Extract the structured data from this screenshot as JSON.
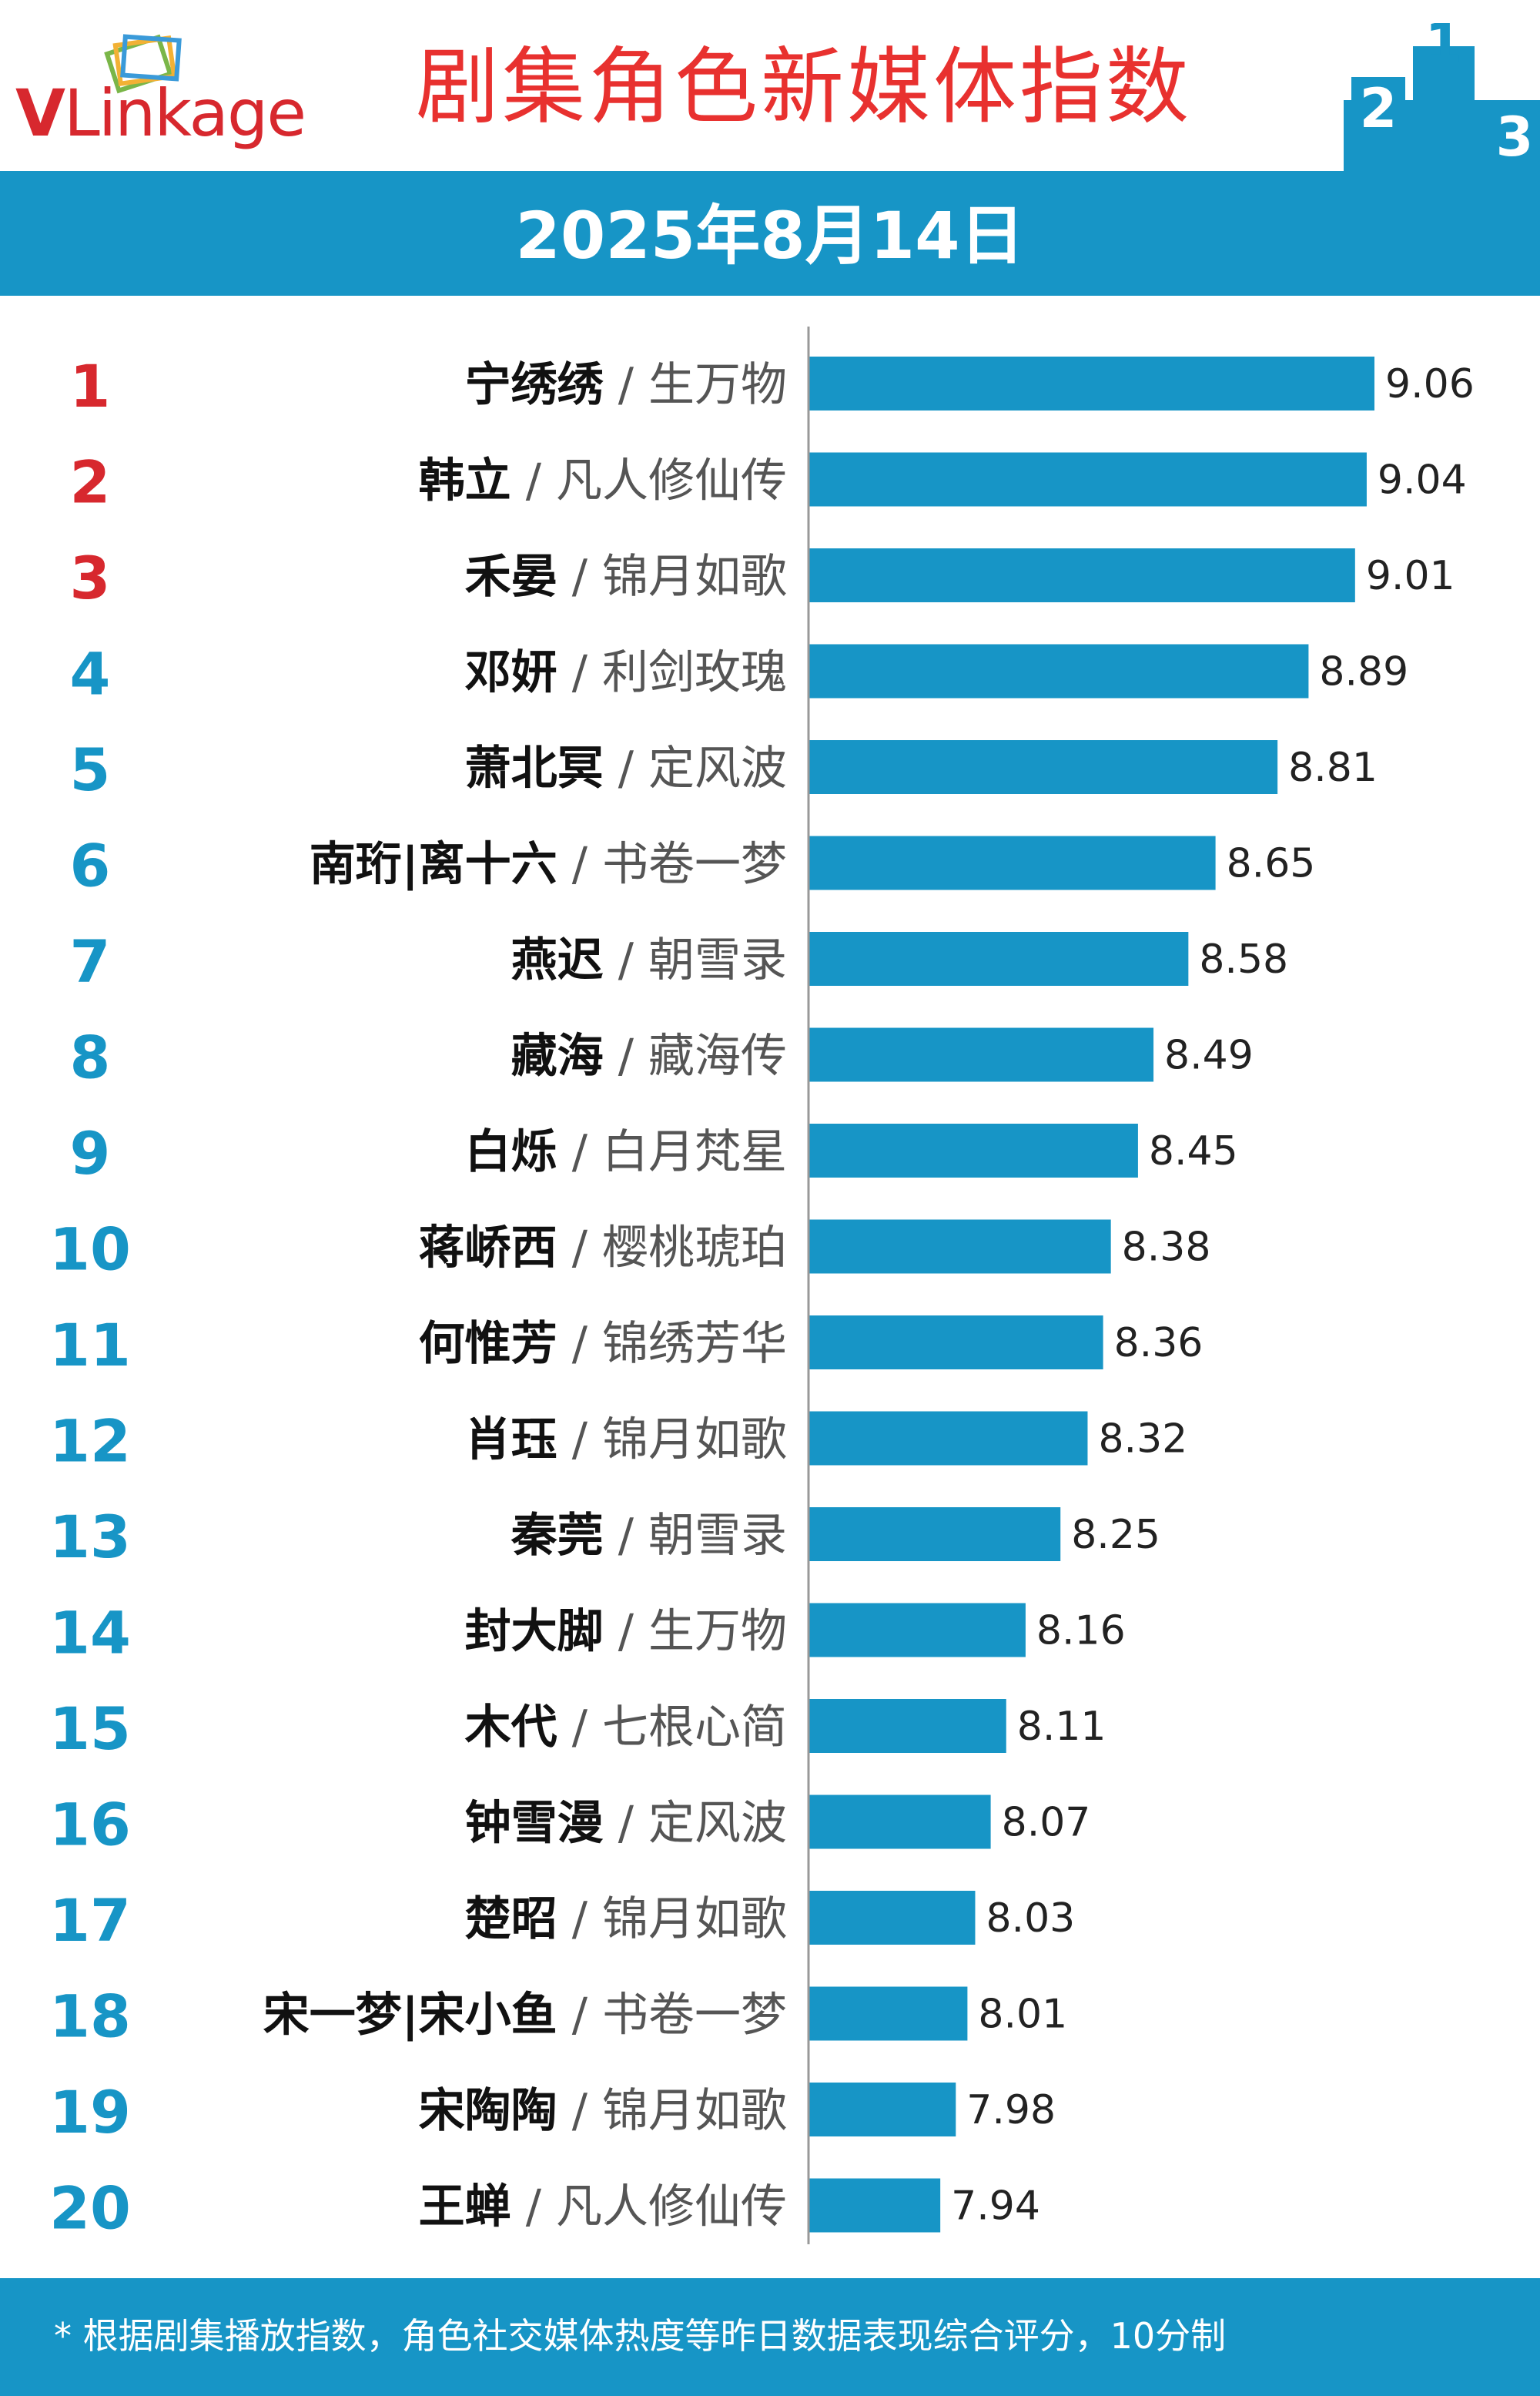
{
  "header": {
    "logo_text_v": "V",
    "logo_text_rest": "Linkage",
    "title": "剧集角色新媒体指数",
    "podium": [
      "2",
      "1",
      "3"
    ]
  },
  "date": "2025年8月14日",
  "colors": {
    "bar": "#1795c6",
    "rank_top3": "#d7282e",
    "rank_other": "#1795c6",
    "title_red": "#e8312f"
  },
  "chart_data": {
    "type": "bar",
    "orientation": "horizontal",
    "title": "剧集角色新媒体指数",
    "ylim": [
      7.6,
      9.2
    ],
    "rows": [
      {
        "rank": "1",
        "name": "宁绣绣",
        "drama": "生万物",
        "value": 9.06
      },
      {
        "rank": "2",
        "name": "韩立",
        "drama": "凡人修仙传",
        "value": 9.04
      },
      {
        "rank": "3",
        "name": "禾晏",
        "drama": "锦月如歌",
        "value": 9.01
      },
      {
        "rank": "4",
        "name": "邓妍",
        "drama": "利剑玫瑰",
        "value": 8.89
      },
      {
        "rank": "5",
        "name": "萧北冥",
        "drama": "定风波",
        "value": 8.81
      },
      {
        "rank": "6",
        "name": "南珩|离十六",
        "drama": "书卷一梦",
        "value": 8.65
      },
      {
        "rank": "7",
        "name": "燕迟",
        "drama": "朝雪录",
        "value": 8.58
      },
      {
        "rank": "8",
        "name": "藏海",
        "drama": "藏海传",
        "value": 8.49
      },
      {
        "rank": "9",
        "name": "白烁",
        "drama": "白月梵星",
        "value": 8.45
      },
      {
        "rank": "10",
        "name": "蒋峤西",
        "drama": "樱桃琥珀",
        "value": 8.38
      },
      {
        "rank": "11",
        "name": "何惟芳",
        "drama": "锦绣芳华",
        "value": 8.36
      },
      {
        "rank": "12",
        "name": "肖珏",
        "drama": "锦月如歌",
        "value": 8.32
      },
      {
        "rank": "13",
        "name": "秦莞",
        "drama": "朝雪录",
        "value": 8.25
      },
      {
        "rank": "14",
        "name": "封大脚",
        "drama": "生万物",
        "value": 8.16
      },
      {
        "rank": "15",
        "name": "木代",
        "drama": "七根心简",
        "value": 8.11
      },
      {
        "rank": "16",
        "name": "钟雪漫",
        "drama": "定风波",
        "value": 8.07
      },
      {
        "rank": "17",
        "name": "楚昭",
        "drama": "锦月如歌",
        "value": 8.03
      },
      {
        "rank": "18",
        "name": "宋一梦|宋小鱼",
        "drama": "书卷一梦",
        "value": 8.01
      },
      {
        "rank": "19",
        "name": "宋陶陶",
        "drama": "锦月如歌",
        "value": 7.98
      },
      {
        "rank": "20",
        "name": "王蝉",
        "drama": "凡人修仙传",
        "value": 7.94
      }
    ]
  },
  "footer": {
    "note": "* 根据剧集播放指数，角色社交媒体热度等昨日数据表现综合评分，10分制"
  }
}
